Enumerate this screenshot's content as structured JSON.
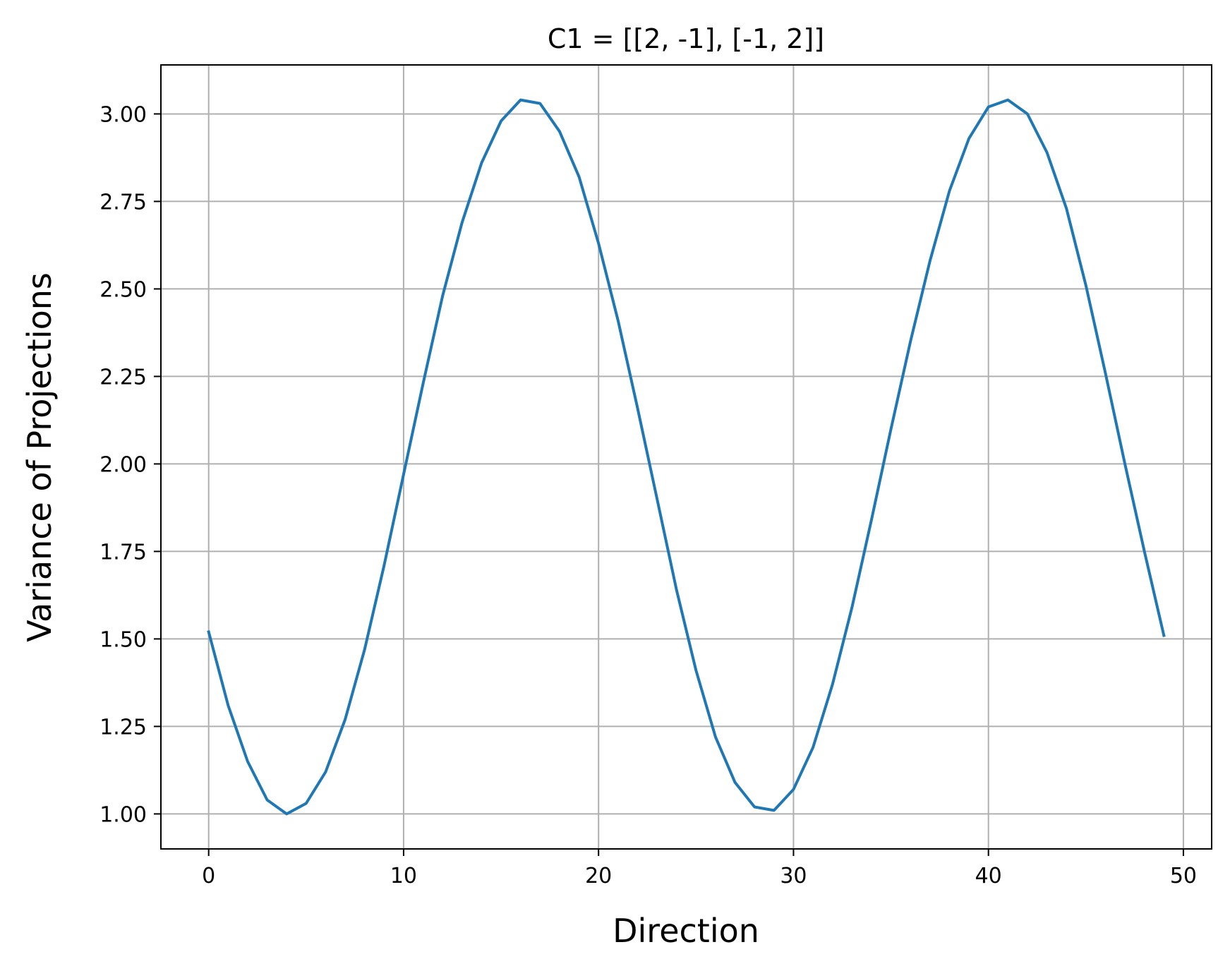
{
  "chart_data": {
    "type": "line",
    "title": "C1 = [[2, -1], [-1, 2]]",
    "xlabel": "Direction",
    "ylabel": "Variance of Projections",
    "xlim": [
      -2.45,
      51.45
    ],
    "ylim": [
      0.9,
      3.14
    ],
    "xticks": [
      0,
      10,
      20,
      30,
      40,
      50
    ],
    "xtick_labels": [
      "0",
      "10",
      "20",
      "30",
      "40",
      "50"
    ],
    "yticks": [
      1.0,
      1.25,
      1.5,
      1.75,
      2.0,
      2.25,
      2.5,
      2.75,
      3.0
    ],
    "ytick_labels": [
      "1.00",
      "1.25",
      "1.50",
      "1.75",
      "2.00",
      "2.25",
      "2.50",
      "2.75",
      "3.00"
    ],
    "grid": true,
    "colors": {
      "line": "#1f77b4",
      "grid": "#b0b0b0",
      "axes": "#000000",
      "background": "#ffffff"
    },
    "series": [
      {
        "x": [
          0,
          1,
          2,
          3,
          4,
          5,
          6,
          7,
          8,
          9,
          10,
          11,
          12,
          13,
          14,
          15,
          16,
          17,
          18,
          19,
          20,
          21,
          22,
          23,
          24,
          25,
          26,
          27,
          28,
          29,
          30,
          31,
          32,
          33,
          34,
          35,
          36,
          37,
          38,
          39,
          40,
          41,
          42,
          43,
          44,
          45,
          46,
          47,
          48,
          49
        ],
        "values": [
          1.52,
          1.31,
          1.15,
          1.04,
          1.0,
          1.03,
          1.12,
          1.27,
          1.47,
          1.71,
          1.97,
          2.23,
          2.48,
          2.69,
          2.86,
          2.98,
          3.04,
          3.03,
          2.95,
          2.82,
          2.63,
          2.41,
          2.16,
          1.9,
          1.64,
          1.41,
          1.22,
          1.09,
          1.02,
          1.01,
          1.07,
          1.19,
          1.37,
          1.59,
          1.84,
          2.1,
          2.35,
          2.58,
          2.78,
          2.93,
          3.02,
          3.04,
          3.0,
          2.89,
          2.73,
          2.51,
          2.26,
          2.0,
          1.75,
          1.51
        ]
      }
    ]
  }
}
